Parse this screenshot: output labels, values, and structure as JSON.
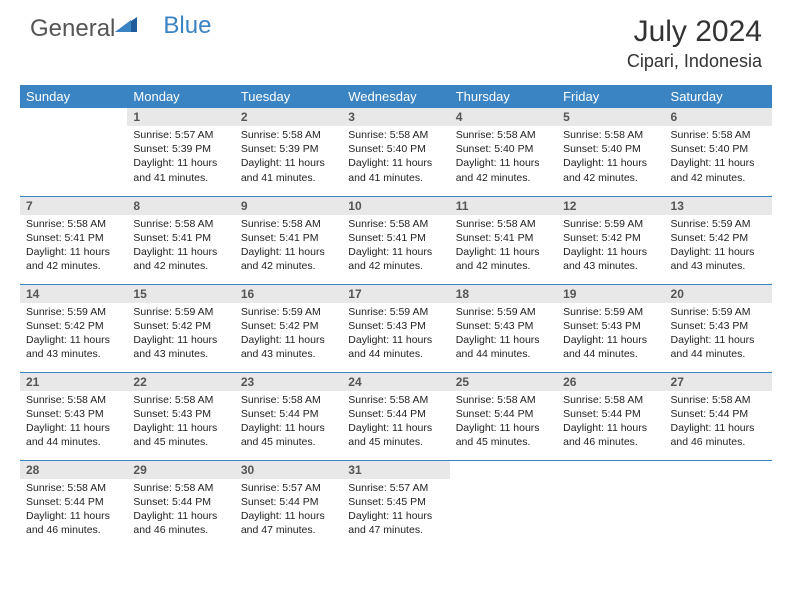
{
  "logo": {
    "part1": "General",
    "part2": "Blue"
  },
  "title": "July 2024",
  "location": "Cipari, Indonesia",
  "colors": {
    "header_bg": "#3a84c4",
    "header_text": "#ffffff",
    "daynum_bg": "#e8e8e8",
    "daynum_text": "#555555",
    "body_text": "#222222",
    "accent": "#3a84c4",
    "page_bg": "#ffffff"
  },
  "weekdays": [
    "Sunday",
    "Monday",
    "Tuesday",
    "Wednesday",
    "Thursday",
    "Friday",
    "Saturday"
  ],
  "weeks": [
    [
      null,
      {
        "n": "1",
        "sunrise": "5:57 AM",
        "sunset": "5:39 PM",
        "daylight": "11 hours and 41 minutes."
      },
      {
        "n": "2",
        "sunrise": "5:58 AM",
        "sunset": "5:39 PM",
        "daylight": "11 hours and 41 minutes."
      },
      {
        "n": "3",
        "sunrise": "5:58 AM",
        "sunset": "5:40 PM",
        "daylight": "11 hours and 41 minutes."
      },
      {
        "n": "4",
        "sunrise": "5:58 AM",
        "sunset": "5:40 PM",
        "daylight": "11 hours and 42 minutes."
      },
      {
        "n": "5",
        "sunrise": "5:58 AM",
        "sunset": "5:40 PM",
        "daylight": "11 hours and 42 minutes."
      },
      {
        "n": "6",
        "sunrise": "5:58 AM",
        "sunset": "5:40 PM",
        "daylight": "11 hours and 42 minutes."
      }
    ],
    [
      {
        "n": "7",
        "sunrise": "5:58 AM",
        "sunset": "5:41 PM",
        "daylight": "11 hours and 42 minutes."
      },
      {
        "n": "8",
        "sunrise": "5:58 AM",
        "sunset": "5:41 PM",
        "daylight": "11 hours and 42 minutes."
      },
      {
        "n": "9",
        "sunrise": "5:58 AM",
        "sunset": "5:41 PM",
        "daylight": "11 hours and 42 minutes."
      },
      {
        "n": "10",
        "sunrise": "5:58 AM",
        "sunset": "5:41 PM",
        "daylight": "11 hours and 42 minutes."
      },
      {
        "n": "11",
        "sunrise": "5:58 AM",
        "sunset": "5:41 PM",
        "daylight": "11 hours and 42 minutes."
      },
      {
        "n": "12",
        "sunrise": "5:59 AM",
        "sunset": "5:42 PM",
        "daylight": "11 hours and 43 minutes."
      },
      {
        "n": "13",
        "sunrise": "5:59 AM",
        "sunset": "5:42 PM",
        "daylight": "11 hours and 43 minutes."
      }
    ],
    [
      {
        "n": "14",
        "sunrise": "5:59 AM",
        "sunset": "5:42 PM",
        "daylight": "11 hours and 43 minutes."
      },
      {
        "n": "15",
        "sunrise": "5:59 AM",
        "sunset": "5:42 PM",
        "daylight": "11 hours and 43 minutes."
      },
      {
        "n": "16",
        "sunrise": "5:59 AM",
        "sunset": "5:42 PM",
        "daylight": "11 hours and 43 minutes."
      },
      {
        "n": "17",
        "sunrise": "5:59 AM",
        "sunset": "5:43 PM",
        "daylight": "11 hours and 44 minutes."
      },
      {
        "n": "18",
        "sunrise": "5:59 AM",
        "sunset": "5:43 PM",
        "daylight": "11 hours and 44 minutes."
      },
      {
        "n": "19",
        "sunrise": "5:59 AM",
        "sunset": "5:43 PM",
        "daylight": "11 hours and 44 minutes."
      },
      {
        "n": "20",
        "sunrise": "5:59 AM",
        "sunset": "5:43 PM",
        "daylight": "11 hours and 44 minutes."
      }
    ],
    [
      {
        "n": "21",
        "sunrise": "5:58 AM",
        "sunset": "5:43 PM",
        "daylight": "11 hours and 44 minutes."
      },
      {
        "n": "22",
        "sunrise": "5:58 AM",
        "sunset": "5:43 PM",
        "daylight": "11 hours and 45 minutes."
      },
      {
        "n": "23",
        "sunrise": "5:58 AM",
        "sunset": "5:44 PM",
        "daylight": "11 hours and 45 minutes."
      },
      {
        "n": "24",
        "sunrise": "5:58 AM",
        "sunset": "5:44 PM",
        "daylight": "11 hours and 45 minutes."
      },
      {
        "n": "25",
        "sunrise": "5:58 AM",
        "sunset": "5:44 PM",
        "daylight": "11 hours and 45 minutes."
      },
      {
        "n": "26",
        "sunrise": "5:58 AM",
        "sunset": "5:44 PM",
        "daylight": "11 hours and 46 minutes."
      },
      {
        "n": "27",
        "sunrise": "5:58 AM",
        "sunset": "5:44 PM",
        "daylight": "11 hours and 46 minutes."
      }
    ],
    [
      {
        "n": "28",
        "sunrise": "5:58 AM",
        "sunset": "5:44 PM",
        "daylight": "11 hours and 46 minutes."
      },
      {
        "n": "29",
        "sunrise": "5:58 AM",
        "sunset": "5:44 PM",
        "daylight": "11 hours and 46 minutes."
      },
      {
        "n": "30",
        "sunrise": "5:57 AM",
        "sunset": "5:44 PM",
        "daylight": "11 hours and 47 minutes."
      },
      {
        "n": "31",
        "sunrise": "5:57 AM",
        "sunset": "5:45 PM",
        "daylight": "11 hours and 47 minutes."
      },
      null,
      null,
      null
    ]
  ],
  "labels": {
    "sunrise": "Sunrise:",
    "sunset": "Sunset:",
    "daylight": "Daylight:"
  }
}
